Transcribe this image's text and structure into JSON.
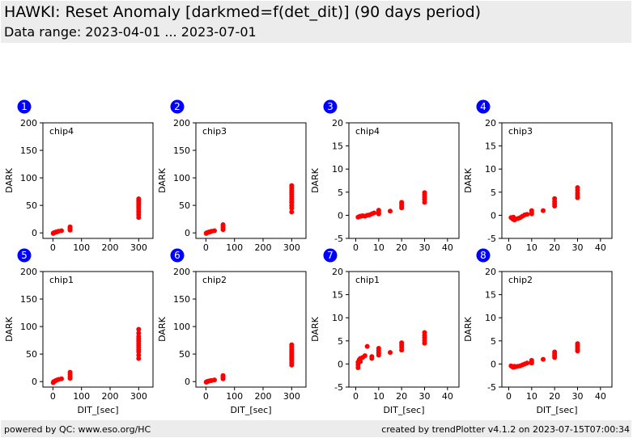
{
  "header": {
    "title": "HAWKI: Reset Anomaly [darkmed=f(det_dit)] (90 days period)",
    "subtitle": "Data range: 2023-04-01 ... 2023-07-01"
  },
  "footer": {
    "left": "powered by QC: www.eso.org/HC",
    "right": "created by trendPlotter v4.1.2 on 2023-07-15T07:00:34"
  },
  "colors": {
    "points": "#ff0000",
    "badge": "#0000ff",
    "header_bg": "#ececec"
  },
  "chart_data": [
    {
      "type": "scatter",
      "panel": "1",
      "label": "chip4",
      "xlabel": "",
      "ylabel": "DARK",
      "xlim": [
        -35,
        350
      ],
      "ylim": [
        -10,
        200
      ],
      "xticks": [
        0,
        100,
        200,
        300
      ],
      "yticks": [
        0,
        50,
        100,
        150,
        200
      ],
      "x": [
        1,
        2,
        3,
        5,
        8,
        10,
        15,
        20,
        30,
        60,
        60,
        60,
        60,
        300,
        300,
        300,
        300,
        300,
        300,
        300,
        300,
        300,
        300,
        300,
        300
      ],
      "y": [
        -1,
        0,
        0,
        0.5,
        1,
        1.5,
        2,
        3,
        4,
        5,
        7,
        9,
        11,
        28,
        33,
        37,
        40,
        44,
        47,
        50,
        53,
        56,
        58,
        60,
        62
      ]
    },
    {
      "type": "scatter",
      "panel": "2",
      "label": "chip3",
      "xlabel": "",
      "ylabel": "DARK",
      "xlim": [
        -35,
        350
      ],
      "ylim": [
        -10,
        200
      ],
      "xticks": [
        0,
        100,
        200,
        300
      ],
      "yticks": [
        0,
        50,
        100,
        150,
        200
      ],
      "x": [
        1,
        2,
        3,
        5,
        8,
        10,
        15,
        20,
        30,
        60,
        60,
        60,
        60,
        300,
        300,
        300,
        300,
        300,
        300,
        300,
        300,
        300,
        300,
        300,
        300
      ],
      "y": [
        -1,
        0,
        0,
        0.5,
        1,
        1.5,
        2,
        3,
        4,
        6,
        9,
        12,
        15,
        38,
        45,
        50,
        55,
        58,
        62,
        66,
        70,
        74,
        78,
        82,
        86
      ]
    },
    {
      "type": "scatter",
      "panel": "3",
      "label": "chip4",
      "xlabel": "",
      "ylabel": "DARK",
      "xlim": [
        -3,
        45
      ],
      "ylim": [
        -5,
        20
      ],
      "xticks": [
        0,
        10,
        20,
        30,
        40
      ],
      "yticks": [
        -5,
        0,
        5,
        10,
        15,
        20
      ],
      "x": [
        1,
        1.5,
        2,
        2.5,
        3,
        4,
        5,
        6,
        7,
        8,
        10,
        10,
        10,
        15,
        20,
        20,
        20,
        20,
        30,
        30,
        30,
        30,
        30
      ],
      "y": [
        -0.4,
        -0.3,
        -0.2,
        -0.2,
        -0.1,
        -0.2,
        0,
        0.1,
        0.3,
        0.5,
        0.3,
        0.7,
        1.1,
        0.9,
        1.6,
        2.0,
        2.4,
        2.8,
        2.8,
        3.4,
        3.9,
        4.4,
        4.9
      ]
    },
    {
      "type": "scatter",
      "panel": "4",
      "label": "chip3",
      "xlabel": "",
      "ylabel": "DARK",
      "xlim": [
        -3,
        45
      ],
      "ylim": [
        -5,
        20
      ],
      "xticks": [
        0,
        10,
        20,
        30,
        40
      ],
      "yticks": [
        -5,
        0,
        5,
        10,
        15,
        20
      ],
      "x": [
        1,
        1.5,
        2,
        2,
        2.5,
        3,
        4,
        5,
        6,
        7,
        8,
        10,
        10,
        10,
        15,
        20,
        20,
        20,
        20,
        30,
        30,
        30,
        30,
        30
      ],
      "y": [
        -0.5,
        -0.7,
        -0.9,
        -0.4,
        -1.0,
        -0.8,
        -0.7,
        -0.5,
        -0.2,
        0.1,
        0.2,
        0.3,
        0.6,
        1.0,
        1.0,
        2.0,
        2.5,
        3.0,
        3.6,
        3.8,
        4.3,
        4.8,
        5.4,
        6.0
      ]
    },
    {
      "type": "scatter",
      "panel": "5",
      "label": "chip1",
      "xlabel": "DIT_[sec]",
      "ylabel": "DARK",
      "xlim": [
        -35,
        350
      ],
      "ylim": [
        -10,
        200
      ],
      "xticks": [
        0,
        100,
        200,
        300
      ],
      "yticks": [
        0,
        50,
        100,
        150,
        200
      ],
      "x": [
        1,
        2,
        3,
        5,
        8,
        10,
        15,
        20,
        30,
        60,
        60,
        60,
        60,
        300,
        300,
        300,
        300,
        300,
        300,
        300,
        300,
        300,
        300,
        300,
        300
      ],
      "y": [
        -2,
        -1,
        0,
        0.5,
        1,
        2,
        3,
        4,
        5,
        6,
        9,
        13,
        17,
        42,
        48,
        54,
        58,
        62,
        66,
        70,
        74,
        78,
        82,
        88,
        95
      ]
    },
    {
      "type": "scatter",
      "panel": "6",
      "label": "chip2",
      "xlabel": "DIT_[sec]",
      "ylabel": "DARK",
      "xlim": [
        -35,
        350
      ],
      "ylim": [
        -10,
        200
      ],
      "xticks": [
        0,
        100,
        200,
        300
      ],
      "yticks": [
        0,
        50,
        100,
        150,
        200
      ],
      "x": [
        1,
        2,
        3,
        5,
        8,
        10,
        15,
        20,
        30,
        60,
        60,
        60,
        60,
        300,
        300,
        300,
        300,
        300,
        300,
        300,
        300,
        300,
        300,
        300,
        300
      ],
      "y": [
        -1,
        -1,
        0,
        0,
        0.5,
        1,
        1.5,
        2,
        3,
        5,
        7,
        9,
        11,
        30,
        34,
        38,
        41,
        44,
        47,
        50,
        53,
        56,
        59,
        63,
        67
      ]
    },
    {
      "type": "scatter",
      "panel": "7",
      "label": "chip1",
      "xlabel": "DIT_[sec]",
      "ylabel": "DARK",
      "xlim": [
        -3,
        45
      ],
      "ylim": [
        -5,
        20
      ],
      "xticks": [
        0,
        10,
        20,
        30,
        40
      ],
      "yticks": [
        -5,
        0,
        5,
        10,
        15,
        20
      ],
      "x": [
        1,
        1,
        1,
        1.5,
        2,
        2,
        3,
        4,
        5,
        7,
        7,
        10,
        10,
        10,
        10,
        15,
        20,
        20,
        20,
        20,
        30,
        30,
        30,
        30,
        30
      ],
      "y": [
        -0.8,
        -0.2,
        0.4,
        0.9,
        0.5,
        1.2,
        1.4,
        1.8,
        3.8,
        1.2,
        1.6,
        1.9,
        2.4,
        2.9,
        3.4,
        2.5,
        3.0,
        3.6,
        4.1,
        4.6,
        4.5,
        5.1,
        5.7,
        6.2,
        6.8
      ]
    },
    {
      "type": "scatter",
      "panel": "8",
      "label": "chip2",
      "xlabel": "DIT_[sec]",
      "ylabel": "DARK",
      "xlim": [
        -3,
        45
      ],
      "ylim": [
        -5,
        20
      ],
      "xticks": [
        0,
        10,
        20,
        30,
        40
      ],
      "yticks": [
        -5,
        0,
        5,
        10,
        15,
        20
      ],
      "x": [
        1,
        1.5,
        2,
        2.5,
        3,
        4,
        5,
        6,
        7,
        8,
        10,
        10,
        10,
        15,
        20,
        20,
        20,
        20,
        30,
        30,
        30,
        30,
        30
      ],
      "y": [
        -0.4,
        -0.6,
        -0.7,
        -0.5,
        -0.6,
        -0.5,
        -0.4,
        -0.2,
        0,
        0.2,
        0.2,
        0.5,
        0.8,
        1.0,
        1.4,
        1.8,
        2.2,
        2.6,
        2.8,
        3.2,
        3.6,
        4.0,
        4.4
      ]
    }
  ]
}
